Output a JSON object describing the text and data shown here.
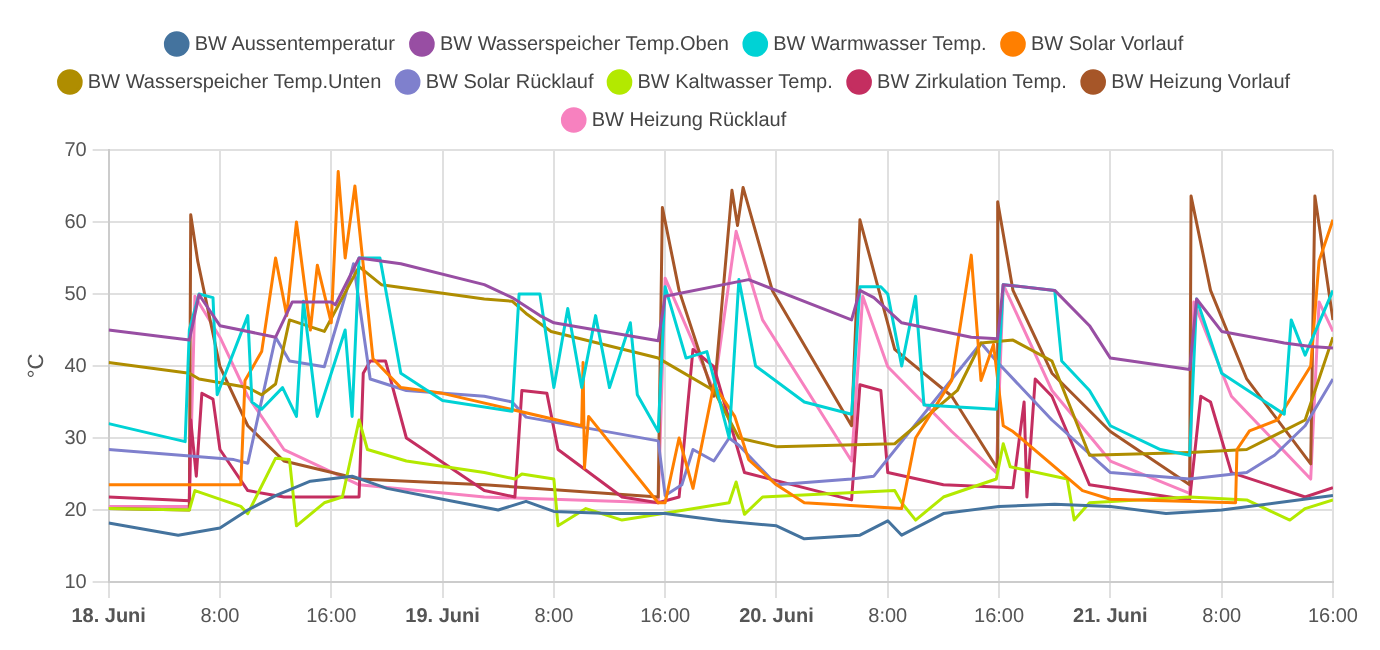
{
  "chart_data": {
    "type": "line",
    "ylabel": "°C",
    "xlim": [
      "--06-18T00:00",
      "--06-21T16:00"
    ],
    "ylim": [
      10,
      70
    ],
    "xticks": [
      {
        "value": "--06-18T00:00",
        "label": "18. Juni"
      },
      {
        "value": "--06-18T08:00",
        "label": "8:00"
      },
      {
        "value": "--06-18T16:00",
        "label": "16:00"
      },
      {
        "value": "--06-19T00:00",
        "label": "19. Juni"
      },
      {
        "value": "--06-19T08:00",
        "label": "8:00"
      },
      {
        "value": "--06-19T16:00",
        "label": "16:00"
      },
      {
        "value": "--06-20T00:00",
        "label": "20. Juni"
      },
      {
        "value": "--06-20T08:00",
        "label": "8:00"
      },
      {
        "value": "--06-20T16:00",
        "label": "16:00"
      },
      {
        "value": "--06-21T00:00",
        "label": "21. Juni"
      },
      {
        "value": "--06-21T08:00",
        "label": "8:00"
      },
      {
        "value": "--06-21T16:00",
        "label": "16:00"
      }
    ],
    "yticks": [
      10,
      20,
      30,
      40,
      50,
      60,
      70
    ],
    "grid": true,
    "legend": "top",
    "marker": "none",
    "line_style": "solid",
    "series": [
      {
        "name": "BW Aussentemperatur",
        "color": "#44739e",
        "x": [
          "--06-18T00:00",
          "--06-18T05:00",
          "--06-18T08:00",
          "--06-18T10:00",
          "--06-18T12:00",
          "--06-18T14:30",
          "--06-18T17:30",
          "--06-18T20:00",
          "--06-19T00:00",
          "--06-19T04:00",
          "--06-19T06:00",
          "--06-19T08:00",
          "--06-19T12:00",
          "--06-19T16:00",
          "--06-19T20:00",
          "--06-20T00:00",
          "--06-20T02:00",
          "--06-20T06:00",
          "--06-20T08:00",
          "--06-20T09:00",
          "--06-20T12:00",
          "--06-20T16:00",
          "--06-20T20:00",
          "--06-21T00:00",
          "--06-21T04:00",
          "--06-21T08:00",
          "--06-21T12:00",
          "--06-21T16:00"
        ],
        "values": [
          18.2,
          16.5,
          17.5,
          20,
          22,
          24,
          24.7,
          23,
          21.5,
          20,
          21.2,
          19.8,
          19.5,
          19.5,
          18.5,
          17.8,
          16,
          16.5,
          18.5,
          16.5,
          19.5,
          20.5,
          20.8,
          20.5,
          19.5,
          20,
          21,
          22
        ]
      },
      {
        "name": "BW Wasserspeicher Temp.Oben",
        "color": "#984ea3",
        "x": [
          "--06-18T00:00",
          "--06-18T05:48",
          "--06-18T06:30",
          "--06-18T08:00",
          "--06-18T12:00",
          "--06-18T13:12",
          "--06-18T16:00",
          "--06-18T16:18",
          "--06-18T18:00",
          "--06-18T21:00",
          "--06-19T03:00",
          "--06-19T05:00",
          "--06-19T07:00",
          "--06-19T08:00",
          "--06-19T15:30",
          "--06-19T16:00",
          "--06-19T22:00",
          "--06-20T05:24",
          "--06-20T06:00",
          "--06-20T07:00",
          "--06-20T09:00",
          "--06-20T14:00",
          "--06-20T15:54",
          "--06-20T16:18",
          "--06-20T20:00",
          "--06-20T22:30",
          "--06-21T00:00",
          "--06-21T05:42",
          "--06-21T06:12",
          "--06-21T08:00",
          "--06-21T12:30",
          "--06-21T14:24",
          "--06-21T16:00"
        ],
        "values": [
          45,
          43.6,
          49.9,
          45.6,
          44,
          48.9,
          48.9,
          48.5,
          55,
          54.2,
          51.3,
          49.5,
          47,
          46,
          43.5,
          49.7,
          52,
          46.4,
          50.5,
          49.5,
          46,
          44,
          43.8,
          51.3,
          50.5,
          45.6,
          41.1,
          39.5,
          49.3,
          44.8,
          43.2,
          42.7,
          42.5
        ]
      },
      {
        "name": "BW Warmwasser Temp.",
        "color": "#00d2d5",
        "x": [
          "--06-18T00:00",
          "--06-18T05:30",
          "--06-18T05:48",
          "--06-18T06:30",
          "--06-18T07:30",
          "--06-18T07:48",
          "--06-18T10:00",
          "--06-18T10:18",
          "--06-18T11:00",
          "--06-18T12:30",
          "--06-18T13:30",
          "--06-18T14:00",
          "--06-18T15:00",
          "--06-18T17:00",
          "--06-18T17:30",
          "--06-18T18:00",
          "--06-18T19:30",
          "--06-18T21:00",
          "--06-19T00:00",
          "--06-19T05:00",
          "--06-19T05:30",
          "--06-19T07:00",
          "--06-19T08:00",
          "--06-19T09:00",
          "--06-19T10:00",
          "--06-19T11:00",
          "--06-19T12:00",
          "--06-19T13:30",
          "--06-19T14:00",
          "--06-19T15:30",
          "--06-19T16:00",
          "--06-19T17:30",
          "--06-19T19:00",
          "--06-19T20:36",
          "--06-19T21:18",
          "--06-19T22:30",
          "--06-20T02:00",
          "--06-20T05:24",
          "--06-20T06:00",
          "--06-20T07:30",
          "--06-20T08:00",
          "--06-20T09:00",
          "--06-20T10:00",
          "--06-20T10:36",
          "--06-20T15:48",
          "--06-20T16:18",
          "--06-20T20:00",
          "--06-20T20:30",
          "--06-20T22:30",
          "--06-21T00:00",
          "--06-21T03:36",
          "--06-21T05:42",
          "--06-21T06:12",
          "--06-21T08:00",
          "--06-21T12:30",
          "--06-21T13:00",
          "--06-21T14:00",
          "--06-21T16:00"
        ],
        "values": [
          32,
          29.5,
          45,
          50,
          49.5,
          36,
          47,
          35,
          34,
          37,
          33,
          49,
          33,
          45,
          33,
          55,
          55,
          39,
          35.2,
          33.7,
          50,
          50,
          37,
          48,
          37,
          47,
          37,
          46,
          36,
          30.9,
          51,
          41.1,
          42,
          30,
          52,
          40,
          35,
          33.3,
          51,
          51,
          50,
          40,
          49.7,
          34.6,
          34,
          51.3,
          50.5,
          40.7,
          36.6,
          31.7,
          28.4,
          27.6,
          49.3,
          39,
          33.3,
          46.4,
          41.5,
          50.5
        ]
      },
      {
        "name": "BW Solar Vorlauf",
        "color": "#ff7f00",
        "x": [
          "--06-18T00:00",
          "--06-18T09:30",
          "--06-18T09:48",
          "--06-18T11:00",
          "--06-18T12:00",
          "--06-18T12:48",
          "--06-18T13:30",
          "--06-18T14:30",
          "--06-18T15:00",
          "--06-18T16:00",
          "--06-18T16:30",
          "--06-18T17:00",
          "--06-18T17:42",
          "--06-18T18:18",
          "--06-18T19:00",
          "--06-18T21:00",
          "--06-19T00:00",
          "--06-19T10:00",
          "--06-19T10:06",
          "--06-19T10:12",
          "--06-19T10:30",
          "--06-19T15:30",
          "--06-19T16:00",
          "--06-19T17:00",
          "--06-19T18:00",
          "--06-19T19:30",
          "--06-19T21:00",
          "--06-19T22:00",
          "--06-20T00:00",
          "--06-20T02:00",
          "--06-20T09:00",
          "--06-20T10:00",
          "--06-20T12:36",
          "--06-20T14:00",
          "--06-20T14:42",
          "--06-20T15:36",
          "--06-20T16:18",
          "--06-20T17:00",
          "--06-20T22:00",
          "--06-21T00:00",
          "--06-21T09:00",
          "--06-21T09:06",
          "--06-21T10:00",
          "--06-21T12:00",
          "--06-21T14:24",
          "--06-21T15:00",
          "--06-21T16:00"
        ],
        "values": [
          23.5,
          23.5,
          38,
          42,
          55,
          47,
          60,
          45,
          54,
          46,
          67,
          55,
          65,
          54,
          41,
          37,
          36.2,
          31.7,
          40.5,
          25.8,
          33,
          21,
          21,
          30,
          23,
          37.4,
          33,
          27,
          23.5,
          21,
          20.2,
          30,
          38,
          55.4,
          38,
          43,
          31.7,
          30.9,
          22.7,
          21.5,
          21,
          28.4,
          31,
          32.5,
          40,
          54.6,
          60.3
        ]
      },
      {
        "name": "BW Wasserspeicher Temp.Unten",
        "color": "#af8d00",
        "x": [
          "--06-18T00:00",
          "--06-18T05:48",
          "--06-18T06:30",
          "--06-18T10:00",
          "--06-18T11:00",
          "--06-18T12:00",
          "--06-18T13:00",
          "--06-18T15:30",
          "--06-18T18:00",
          "--06-18T19:36",
          "--06-19T03:00",
          "--06-19T05:00",
          "--06-19T06:00",
          "--06-19T07:48",
          "--06-19T15:30",
          "--06-19T19:30",
          "--06-19T21:18",
          "--06-20T00:00",
          "--06-20T08:30",
          "--06-20T13:00",
          "--06-20T14:42",
          "--06-20T17:00",
          "--06-20T19:48",
          "--06-20T22:30",
          "--06-21T05:42",
          "--06-21T09:48",
          "--06-21T14:00",
          "--06-21T16:00"
        ],
        "values": [
          40.5,
          39,
          38.2,
          37,
          36,
          37.5,
          46.4,
          44.8,
          53.8,
          51.3,
          49.3,
          49,
          47.3,
          44.8,
          41.1,
          36.6,
          30,
          28.8,
          29.2,
          36.6,
          43.2,
          43.6,
          40.7,
          27.6,
          28,
          28.4,
          32.5,
          44
        ]
      },
      {
        "name": "BW Solar Rücklauf",
        "color": "#7f80cd",
        "x": [
          "--06-18T00:00",
          "--06-18T09:00",
          "--06-18T10:00",
          "--06-18T12:00",
          "--06-18T13:00",
          "--06-18T15:30",
          "--06-18T17:00",
          "--06-18T17:36",
          "--06-18T18:48",
          "--06-18T21:24",
          "--06-19T03:00",
          "--06-19T05:00",
          "--06-19T06:00",
          "--06-19T15:30",
          "--06-19T16:00",
          "--06-19T17:12",
          "--06-19T18:00",
          "--06-19T19:30",
          "--06-19T20:36",
          "--06-19T21:18",
          "--06-20T00:00",
          "--06-20T05:24",
          "--06-20T07:00",
          "--06-20T14:42",
          "--06-20T15:48",
          "--06-20T19:48",
          "--06-21T00:00",
          "--06-21T05:42",
          "--06-21T09:48",
          "--06-21T11:48",
          "--06-21T14:00",
          "--06-21T16:00"
        ],
        "values": [
          28.4,
          27,
          26.5,
          44,
          40.7,
          39.9,
          49.7,
          54.2,
          38.2,
          36.6,
          35.8,
          35,
          32.9,
          29.6,
          22,
          23.5,
          28.4,
          26.8,
          30,
          29,
          23.5,
          24.3,
          24.7,
          43.2,
          40.7,
          32.5,
          25.2,
          24.3,
          25.2,
          27.6,
          31.7,
          38.2
        ]
      },
      {
        "name": "BW Kaltwasser Temp.",
        "color": "#b3e900",
        "x": [
          "--06-18T00:00",
          "--06-18T05:48",
          "--06-18T06:12",
          "--06-18T09:30",
          "--06-18T10:00",
          "--06-18T12:00",
          "--06-18T13:00",
          "--06-18T13:30",
          "--06-18T15:30",
          "--06-18T16:48",
          "--06-18T18:00",
          "--06-18T18:36",
          "--06-18T21:24",
          "--06-19T03:00",
          "--06-19T05:12",
          "--06-19T05:42",
          "--06-19T08:00",
          "--06-19T08:18",
          "--06-19T10:18",
          "--06-19T12:54",
          "--06-19T15:30",
          "--06-19T20:36",
          "--06-19T21:06",
          "--06-19T21:42",
          "--06-19T23:00",
          "--06-20T08:30",
          "--06-20T09:00",
          "--06-20T10:00",
          "--06-20T12:00",
          "--06-20T15:48",
          "--06-20T16:18",
          "--06-20T16:48",
          "--06-20T20:54",
          "--06-20T21:24",
          "--06-20T22:30",
          "--06-21T05:42",
          "--06-21T09:48",
          "--06-21T12:54",
          "--06-21T14:00",
          "--06-21T16:00"
        ],
        "values": [
          20.2,
          20,
          22.7,
          20.5,
          19.5,
          27.2,
          27,
          17.8,
          21,
          21.8,
          32.5,
          28.4,
          26.8,
          25.2,
          24.3,
          25,
          24.3,
          17.8,
          20.2,
          18.6,
          19.4,
          21,
          23.9,
          19.4,
          21.8,
          22.7,
          21,
          18.6,
          21.8,
          24.3,
          29.2,
          26,
          24.3,
          18.6,
          21,
          21.8,
          21.4,
          18.6,
          20.2,
          21.4
        ]
      },
      {
        "name": "BW Zirkulation Temp.",
        "color": "#c42e60",
        "x": [
          "--06-18T00:00",
          "--06-18T05:48",
          "--06-18T05:54",
          "--06-18T06:18",
          "--06-18T06:42",
          "--06-18T07:30",
          "--06-18T08:00",
          "--06-18T10:00",
          "--06-18T12:36",
          "--06-18T18:00",
          "--06-18T18:18",
          "--06-18T18:48",
          "--06-18T19:54",
          "--06-18T21:24",
          "--06-19T03:00",
          "--06-19T05:12",
          "--06-19T05:42",
          "--06-19T07:30",
          "--06-19T08:18",
          "--06-19T12:54",
          "--06-19T15:30",
          "--06-19T17:00",
          "--06-19T18:00",
          "--06-19T19:30",
          "--06-19T21:42",
          "--06-20T05:24",
          "--06-20T06:00",
          "--06-20T07:30",
          "--06-20T08:00",
          "--06-20T12:00",
          "--06-20T17:00",
          "--06-20T17:48",
          "--06-20T18:00",
          "--06-20T18:36",
          "--06-20T19:48",
          "--06-20T22:30",
          "--06-21T05:42",
          "--06-21T06:30",
          "--06-21T07:12",
          "--06-21T08:42",
          "--06-21T14:00",
          "--06-21T16:00"
        ],
        "values": [
          21.8,
          21.3,
          32.5,
          24.7,
          36.2,
          35.4,
          28.4,
          22.7,
          21.8,
          21.8,
          39,
          40.7,
          40.7,
          30,
          22.7,
          21.8,
          36.6,
          36.2,
          28.4,
          21.8,
          21,
          21.8,
          42.3,
          39.9,
          25.2,
          21.4,
          37.4,
          36.6,
          25.2,
          23.5,
          23.1,
          35,
          21.8,
          38.2,
          35.8,
          23.5,
          21.4,
          35.8,
          35,
          25.2,
          21.8,
          23.1
        ]
      },
      {
        "name": "BW Heizung Vorlauf",
        "color": "#a65628",
        "x": [
          "--06-18T00:00",
          "--06-18T05:48",
          "--06-18T05:54",
          "--06-18T06:24",
          "--06-18T08:00",
          "--06-18T10:00",
          "--06-18T12:36",
          "--06-18T18:00",
          "--06-19T03:00",
          "--06-19T15:30",
          "--06-19T15:48",
          "--06-19T17:00",
          "--06-19T19:30",
          "--06-19T20:48",
          "--06-19T21:12",
          "--06-19T21:36",
          "--06-19T23:42",
          "--06-20T05:24",
          "--06-20T06:00",
          "--06-20T08:30",
          "--06-20T12:36",
          "--06-20T15:48",
          "--06-20T15:54",
          "--06-20T17:00",
          "--06-20T19:48",
          "--06-21T00:00",
          "--06-21T05:42",
          "--06-21T05:48",
          "--06-21T07:12",
          "--06-21T09:48",
          "--06-21T14:24",
          "--06-21T14:42",
          "--06-21T16:00"
        ],
        "values": [
          20.2,
          20,
          61,
          54.6,
          39.9,
          31.7,
          26.8,
          24.3,
          23.5,
          21.8,
          62,
          50.5,
          35.8,
          64.4,
          59.5,
          64.8,
          50.5,
          31.7,
          60.3,
          42.3,
          35.8,
          26,
          62.8,
          50.5,
          39,
          30.9,
          23.5,
          63.6,
          50.5,
          38.2,
          26.4,
          63.6,
          46.4
        ]
      },
      {
        "name": "BW Heizung Rücklauf",
        "color": "#f781bf",
        "x": [
          "--06-18T00:00",
          "--06-18T05:48",
          "--06-18T06:12",
          "--06-18T08:00",
          "--06-18T10:00",
          "--06-18T12:36",
          "--06-18T18:00",
          "--06-19T03:00",
          "--06-19T15:30",
          "--06-19T16:00",
          "--06-19T19:30",
          "--06-19T21:06",
          "--06-19T23:00",
          "--06-20T05:24",
          "--06-20T06:12",
          "--06-20T08:00",
          "--06-20T12:36",
          "--06-20T15:48",
          "--06-20T16:18",
          "--06-20T19:48",
          "--06-21T00:00",
          "--06-21T05:42",
          "--06-21T06:00",
          "--06-21T08:42",
          "--06-21T14:24",
          "--06-21T15:00",
          "--06-21T16:00"
        ],
        "values": [
          20.5,
          20.5,
          49.7,
          44,
          35.8,
          28.4,
          23.5,
          21.8,
          21,
          52.2,
          36.6,
          58.7,
          46.4,
          26.8,
          49.7,
          39.9,
          30.9,
          25.2,
          51.3,
          36.6,
          26.8,
          22.3,
          48.9,
          35.8,
          24.3,
          48.9,
          44.8
        ]
      }
    ]
  }
}
